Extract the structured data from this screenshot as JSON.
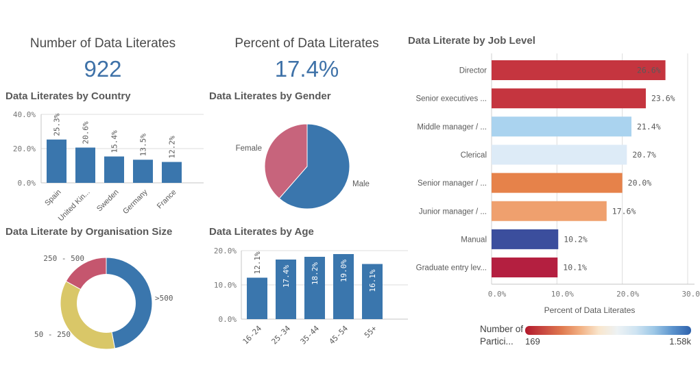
{
  "kpi_number": {
    "title": "Number of Data Literates",
    "value": "922"
  },
  "kpi_percent": {
    "title": "Percent of Data Literates",
    "value": "17.4%"
  },
  "chart_data": [
    {
      "id": "country",
      "type": "bar",
      "title": "Data Literates by Country",
      "categories": [
        "Spain",
        "United Kin...",
        "Sweden",
        "Germany",
        "France"
      ],
      "values": [
        25.3,
        20.6,
        15.4,
        13.5,
        12.2
      ],
      "value_labels": [
        "25.3%",
        "20.6%",
        "15.4%",
        "13.5%",
        "12.2%"
      ],
      "label_inside": [
        false,
        false,
        false,
        false,
        false
      ],
      "ylim": [
        0,
        40
      ],
      "yticks": [
        {
          "v": 0,
          "label": "0.0%"
        },
        {
          "v": 20,
          "label": "20.0%"
        },
        {
          "v": 40,
          "label": "40.0%"
        }
      ],
      "bar_color": "#3a76ad"
    },
    {
      "id": "gender",
      "type": "pie",
      "title": "Data Literates by Gender",
      "slices": [
        {
          "label": "Male",
          "pct": 61.4,
          "color": "#3a76ad"
        },
        {
          "label": "Female",
          "pct": 38.6,
          "color": "#c7647c"
        }
      ]
    },
    {
      "id": "orgsize",
      "type": "donut",
      "title": "Data Literate by Organisation Size",
      "slices": [
        {
          "label": ">500",
          "pct": 47,
          "color": "#3a76ad"
        },
        {
          "label": "50 - 250",
          "pct": 36,
          "color": "#d9c768"
        },
        {
          "label": "250 - 500",
          "pct": 17,
          "color": "#c5566e"
        }
      ]
    },
    {
      "id": "age",
      "type": "bar",
      "title": "Data Literates by Age",
      "categories": [
        "16-24",
        "25-34",
        "35-44",
        "45-54",
        "55+"
      ],
      "values": [
        12.1,
        17.4,
        18.2,
        19.0,
        16.1
      ],
      "value_labels": [
        "12.1%",
        "17.4%",
        "18.2%",
        "19.0%",
        "16.1%"
      ],
      "label_inside": [
        false,
        true,
        true,
        true,
        true
      ],
      "ylim": [
        0,
        20
      ],
      "yticks": [
        {
          "v": 0,
          "label": "0.0%"
        },
        {
          "v": 10,
          "label": "10.0%"
        },
        {
          "v": 20,
          "label": "20.0%"
        }
      ],
      "bar_color": "#3a76ad"
    },
    {
      "id": "joblevel",
      "type": "bar-horizontal",
      "title": "Data Literate by Job Level",
      "categories": [
        "Director",
        "Senior executives ...",
        "Middle manager / ...",
        "Clerical",
        "Senior manager / ...",
        "Junior manager / ...",
        "Manual",
        "Graduate entry lev..."
      ],
      "values": [
        26.6,
        23.6,
        21.4,
        20.7,
        20.0,
        17.6,
        10.2,
        10.1
      ],
      "value_labels": [
        "26.6%",
        "23.6%",
        "21.4%",
        "20.7%",
        "20.0%",
        "17.6%",
        "10.2%",
        "10.1%"
      ],
      "label_inside": [
        true,
        false,
        false,
        false,
        false,
        false,
        false,
        false
      ],
      "bar_colors": [
        "#c5353f",
        "#c5353f",
        "#aad3ef",
        "#ddebf7",
        "#e6824a",
        "#efa06e",
        "#3b4e9d",
        "#b41f40"
      ],
      "xlim": [
        0,
        30
      ],
      "xticks": [
        {
          "v": 0,
          "label": "0.0%"
        },
        {
          "v": 10,
          "label": "10.0%"
        },
        {
          "v": 20,
          "label": "20.0%"
        },
        {
          "v": 30,
          "label": "30.0%"
        }
      ],
      "xlabel": "Percent of Data Literates",
      "legend": {
        "title": "Number of Partici...",
        "min": "169",
        "max": "1.58k",
        "gradient": [
          "#b2182b",
          "#c94a41",
          "#e07a50",
          "#f2b183",
          "#f9e6cd",
          "#edf2f4",
          "#cfe4f2",
          "#9cc7e6",
          "#5b93cd",
          "#2f62ac"
        ]
      }
    }
  ]
}
